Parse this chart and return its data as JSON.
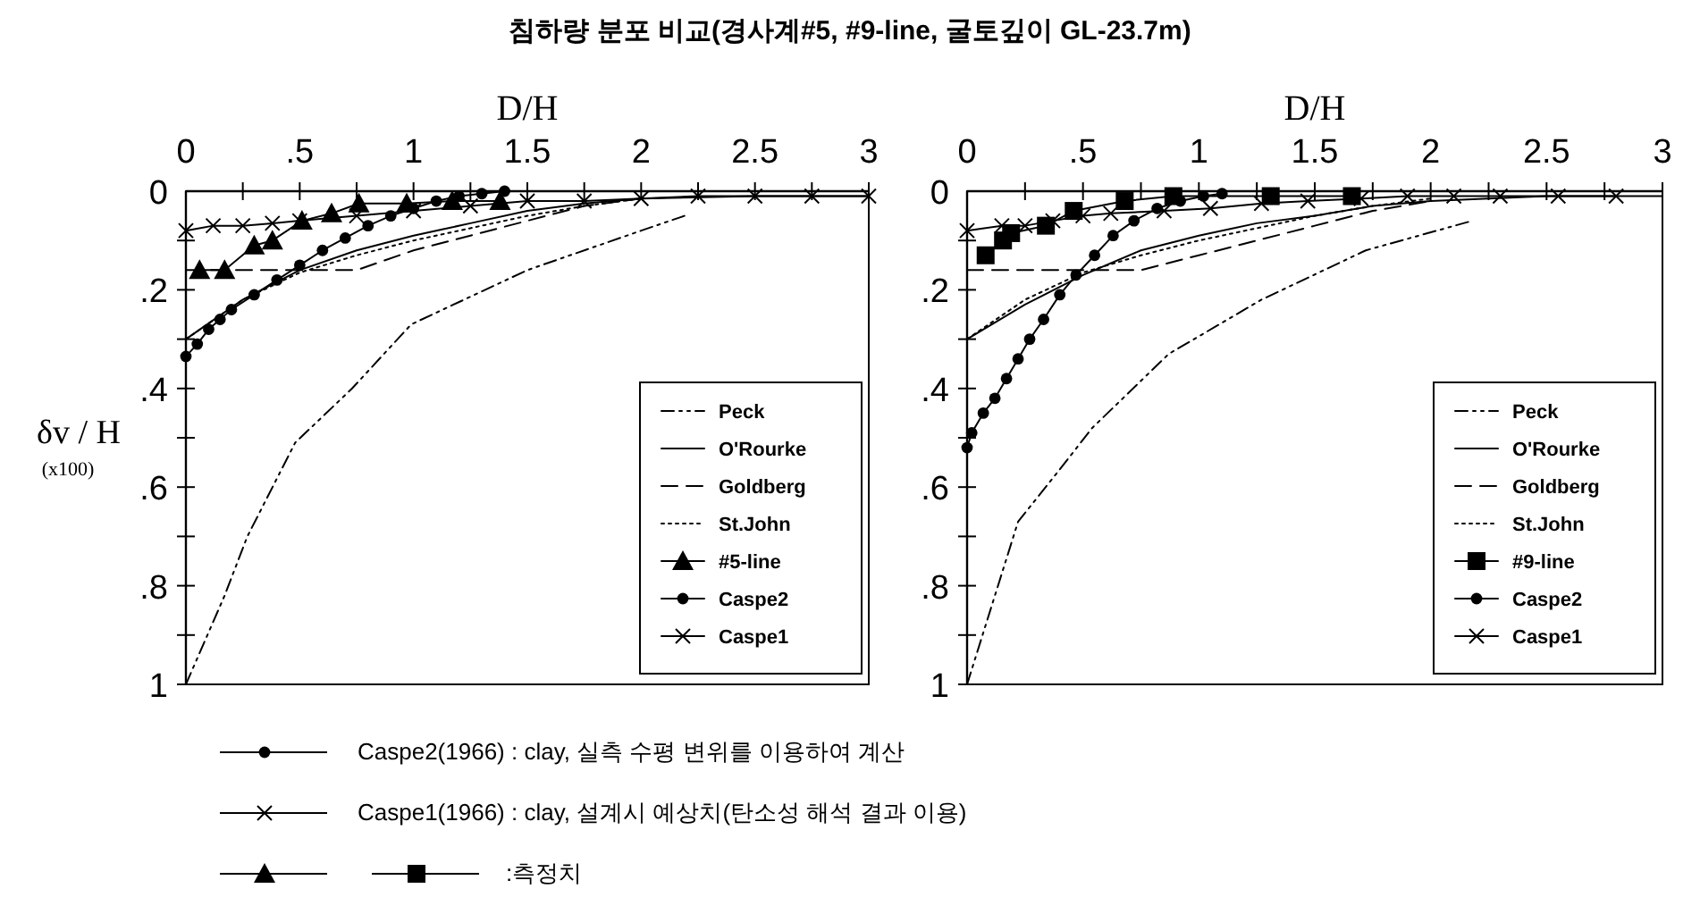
{
  "chart_data": [
    {
      "type": "line",
      "title": "침하량 분포 비교(경사계#5, #9-line, 굴토깊이 GL-23.7m)",
      "xlabel": "D/H",
      "ylabel": "δv / H (x100)",
      "xlim": [
        0,
        3
      ],
      "ylim": [
        1,
        0
      ],
      "xticks": [
        {
          "value": 0,
          "label": "0"
        },
        {
          "value": 0.25,
          "label": null
        },
        {
          "value": 0.5,
          "label": ".5"
        },
        {
          "value": 0.75,
          "label": null
        },
        {
          "value": 1,
          "label": "1"
        },
        {
          "value": 1.25,
          "label": null
        },
        {
          "value": 1.5,
          "label": "1.5"
        },
        {
          "value": 1.75,
          "label": null
        },
        {
          "value": 2,
          "label": "2"
        },
        {
          "value": 2.25,
          "label": null
        },
        {
          "value": 2.5,
          "label": "2.5"
        },
        {
          "value": 2.75,
          "label": null
        },
        {
          "value": 3,
          "label": "3"
        }
      ],
      "yticks": [
        {
          "value": 0,
          "label": "0"
        },
        {
          "value": 0.1,
          "label": null
        },
        {
          "value": 0.2,
          "label": ".2"
        },
        {
          "value": 0.3,
          "label": null
        },
        {
          "value": 0.4,
          "label": ".4"
        },
        {
          "value": 0.5,
          "label": null
        },
        {
          "value": 0.6,
          "label": ".6"
        },
        {
          "value": 0.7,
          "label": null
        },
        {
          "value": 0.8,
          "label": ".8"
        },
        {
          "value": 0.9,
          "label": null
        },
        {
          "value": 1,
          "label": "1"
        }
      ],
      "legend": "bottom right",
      "series": [
        {
          "name": "Peck",
          "color": "#000000",
          "line_style": "dashdot",
          "marker": "none",
          "x": [
            0,
            0.17,
            0.27,
            0.48,
            0.73,
            0.99,
            1.5,
            2.0,
            2.19
          ],
          "values": [
            1,
            0.82,
            0.7,
            0.51,
            0.4,
            0.27,
            0.16,
            0.08,
            0.05
          ]
        },
        {
          "name": "O'Rourke",
          "color": "#000000",
          "line_style": "solid",
          "marker": "none",
          "x": [
            0,
            0.25,
            0.5,
            0.75,
            1,
            1.25,
            1.5,
            1.75,
            2,
            2.5,
            3
          ],
          "values": [
            0.3,
            0.22,
            0.16,
            0.12,
            0.09,
            0.065,
            0.04,
            0.025,
            0.015,
            0.01,
            0.01
          ]
        },
        {
          "name": "Goldberg",
          "color": "#000000",
          "line_style": "dashed",
          "marker": "none",
          "x": [
            0,
            0.75,
            1,
            1.25,
            1.5,
            1.75,
            2
          ],
          "values": [
            0.16,
            0.16,
            0.12,
            0.09,
            0.06,
            0.03,
            0.015
          ]
        },
        {
          "name": "St.John",
          "color": "#000000",
          "line_style": "dotted",
          "marker": "none",
          "x": [
            0,
            0.25,
            0.5,
            0.75,
            1,
            1.25,
            1.5,
            1.75,
            2
          ],
          "values": [
            0.3,
            0.22,
            0.165,
            0.13,
            0.1,
            0.075,
            0.05,
            0.03,
            0.015
          ]
        },
        {
          "name": "#5-line",
          "color": "#000000",
          "line_style": "solid",
          "marker": "triangle",
          "x": [
            0.06,
            0.17,
            0.3,
            0.38,
            0.51,
            0.64,
            0.76,
            0.97,
            1.17,
            1.38
          ],
          "values": [
            0.16,
            0.16,
            0.11,
            0.1,
            0.06,
            0.045,
            0.025,
            0.025,
            0.02,
            0.02
          ]
        },
        {
          "name": "Caspe2",
          "color": "#000000",
          "line_style": "solid",
          "marker": "circle",
          "x": [
            0,
            0.05,
            0.1,
            0.15,
            0.2,
            0.3,
            0.4,
            0.5,
            0.6,
            0.7,
            0.8,
            0.9,
            1.0,
            1.1,
            1.2,
            1.3,
            1.4
          ],
          "values": [
            0.335,
            0.31,
            0.28,
            0.26,
            0.24,
            0.21,
            0.18,
            0.15,
            0.12,
            0.095,
            0.07,
            0.05,
            0.035,
            0.02,
            0.01,
            0.005,
            0
          ]
        },
        {
          "name": "Caspe1",
          "color": "#000000",
          "line_style": "solid",
          "marker": "cross",
          "x": [
            0,
            0.12,
            0.25,
            0.38,
            0.5,
            0.75,
            1.0,
            1.25,
            1.5,
            1.75,
            2,
            2.25,
            2.5,
            2.75,
            3
          ],
          "values": [
            0.08,
            0.07,
            0.07,
            0.065,
            0.06,
            0.05,
            0.04,
            0.03,
            0.02,
            0.02,
            0.015,
            0.01,
            0.01,
            0.01,
            0.01
          ]
        }
      ],
      "annotations": [
        "Caspe2(1966) : clay, 실측 수평 변위를 이용하여 계산",
        "Caspe1(1966) : clay, 설계시 예상치(탄소성 해석 결과 이용)",
        ":측정치"
      ]
    },
    {
      "type": "line",
      "xlabel": "D/H",
      "xlim": [
        0,
        3
      ],
      "ylim": [
        1,
        0
      ],
      "xticks": [
        {
          "value": 0,
          "label": "0"
        },
        {
          "value": 0.25,
          "label": null
        },
        {
          "value": 0.5,
          "label": ".5"
        },
        {
          "value": 0.75,
          "label": null
        },
        {
          "value": 1,
          "label": "1"
        },
        {
          "value": 1.25,
          "label": null
        },
        {
          "value": 1.5,
          "label": "1.5"
        },
        {
          "value": 1.75,
          "label": null
        },
        {
          "value": 2,
          "label": "2"
        },
        {
          "value": 2.25,
          "label": null
        },
        {
          "value": 2.5,
          "label": "2.5"
        },
        {
          "value": 2.75,
          "label": null
        },
        {
          "value": 3,
          "label": "3"
        }
      ],
      "yticks": [
        {
          "value": 0,
          "label": "0"
        },
        {
          "value": 0.1,
          "label": null
        },
        {
          "value": 0.2,
          "label": ".2"
        },
        {
          "value": 0.3,
          "label": null
        },
        {
          "value": 0.4,
          "label": ".4"
        },
        {
          "value": 0.5,
          "label": null
        },
        {
          "value": 0.6,
          "label": ".6"
        },
        {
          "value": 0.7,
          "label": null
        },
        {
          "value": 0.8,
          "label": ".8"
        },
        {
          "value": 0.9,
          "label": null
        },
        {
          "value": 1,
          "label": "1"
        }
      ],
      "legend": "bottom right",
      "series": [
        {
          "name": "Peck",
          "color": "#000000",
          "line_style": "dashdot",
          "marker": "none",
          "x": [
            0,
            0.22,
            0.39,
            0.54,
            0.87,
            1.27,
            1.72,
            2.18
          ],
          "values": [
            1,
            0.67,
            0.57,
            0.48,
            0.33,
            0.22,
            0.12,
            0.06
          ]
        },
        {
          "name": "O'Rourke",
          "color": "#000000",
          "line_style": "solid",
          "marker": "none",
          "x": [
            0,
            0.25,
            0.5,
            0.75,
            1,
            1.25,
            1.5,
            1.75,
            2,
            2.5,
            3
          ],
          "values": [
            0.3,
            0.23,
            0.17,
            0.12,
            0.09,
            0.065,
            0.05,
            0.03,
            0.02,
            0.01,
            0.01
          ]
        },
        {
          "name": "Goldberg",
          "color": "#000000",
          "line_style": "dashed",
          "marker": "none",
          "x": [
            0,
            0.75,
            1,
            1.25,
            1.5,
            1.75,
            2
          ],
          "values": [
            0.16,
            0.16,
            0.13,
            0.1,
            0.07,
            0.04,
            0.02
          ]
        },
        {
          "name": "St.John",
          "color": "#000000",
          "line_style": "dotted",
          "marker": "none",
          "x": [
            0,
            0.25,
            0.5,
            0.75,
            1,
            1.25,
            1.5,
            1.75,
            2
          ],
          "values": [
            0.3,
            0.22,
            0.165,
            0.13,
            0.1,
            0.075,
            0.05,
            0.03,
            0.015
          ]
        },
        {
          "name": "#9-line",
          "color": "#000000",
          "line_style": "solid",
          "marker": "square",
          "x": [
            0.08,
            0.155,
            0.19,
            0.34,
            0.46,
            0.68,
            0.89,
            1.31,
            1.66
          ],
          "values": [
            0.13,
            0.1,
            0.085,
            0.07,
            0.04,
            0.02,
            0.01,
            0.01,
            0.01
          ]
        },
        {
          "name": "Caspe2",
          "color": "#000000",
          "line_style": "solid",
          "marker": "circle",
          "x": [
            0,
            0.02,
            0.07,
            0.12,
            0.17,
            0.22,
            0.27,
            0.33,
            0.4,
            0.47,
            0.55,
            0.63,
            0.72,
            0.82,
            0.92,
            1.02,
            1.1
          ],
          "values": [
            0.52,
            0.49,
            0.45,
            0.42,
            0.38,
            0.34,
            0.3,
            0.26,
            0.21,
            0.17,
            0.13,
            0.09,
            0.06,
            0.035,
            0.02,
            0.01,
            0.005
          ]
        },
        {
          "name": "Caspe1",
          "color": "#000000",
          "line_style": "solid",
          "marker": "cross",
          "x": [
            0,
            0.15,
            0.25,
            0.37,
            0.5,
            0.62,
            0.85,
            1.05,
            1.27,
            1.47,
            1.7,
            1.9,
            2.1,
            2.3,
            2.55,
            2.8
          ],
          "values": [
            0.08,
            0.07,
            0.07,
            0.06,
            0.05,
            0.045,
            0.04,
            0.035,
            0.025,
            0.02,
            0.015,
            0.01,
            0.01,
            0.01,
            0.01,
            0.01
          ]
        }
      ]
    }
  ]
}
